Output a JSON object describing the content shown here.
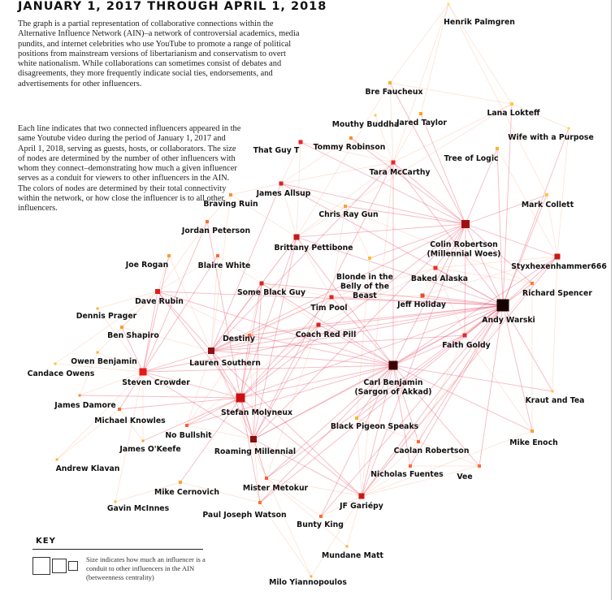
{
  "title": "JANUARY 1, 2017 THROUGH APRIL 1, 2018",
  "description": "The graph is a partial representation of collaborative connections within the Alternative Influence Network (AIN)–a network of controversial academics, media pundits, and internet celebrities who use YouTube to promote a range of political positions from mainstream versions of libertarianism and conservatism to overt white nationalism. While collaborations can sometimes consist of debates and disagreements, they more frequently indicate social ties, endorsements, and advertisements for other influencers.",
  "method": "Each line indicates that two connected influencers appeared in the same Youtube video during the period of January 1, 2017 and April 1, 2018, serving as guests, hosts, or collaborators. The size of nodes are determined by the number of other influencers with whom they connect–demonstrating how much a given influencer serves as a conduit for viewers to other influencers in the AIN. The colors of nodes are determined by their total connectivity within the network, or how close the influencer is to all other influencers.",
  "key": {
    "title": "KEY",
    "text": "Size indicates how much an influencer is a conduit to other influencers in the AIN (betweenness centrality)"
  },
  "colors": {
    "edge": "#e7586f",
    "text": "#111111"
  },
  "nodes": [
    {
      "id": "henrik",
      "label": "Henrik Palmgren",
      "size": 3,
      "color": "#ffe14a"
    },
    {
      "id": "bre",
      "label": "Bre Faucheux",
      "size": 4,
      "color": "#ffb21a"
    },
    {
      "id": "lana",
      "label": "Lana Lokteff",
      "size": 4,
      "color": "#ffc93a"
    },
    {
      "id": "mouthy",
      "label": "Mouthy Buddha",
      "size": 3,
      "color": "#ffcc44"
    },
    {
      "id": "jared",
      "label": "Jared Taylor",
      "size": 4,
      "color": "#ffa020"
    },
    {
      "id": "wife",
      "label": "Wife with a Purpose",
      "size": 3,
      "color": "#ffd83a"
    },
    {
      "id": "thatguy",
      "label": "That Guy T",
      "size": 5,
      "color": "#e8222a"
    },
    {
      "id": "tommy",
      "label": "Tommy Robinson",
      "size": 4,
      "color": "#ff8a2a"
    },
    {
      "id": "treelogic",
      "label": "Tree of Logic",
      "size": 4,
      "color": "#ffb230"
    },
    {
      "id": "tara",
      "label": "Tara McCarthy",
      "size": 5,
      "color": "#e52a2a"
    },
    {
      "id": "allsup",
      "label": "James Allsup",
      "size": 5,
      "color": "#d8202a"
    },
    {
      "id": "braving",
      "label": "Braving Ruin",
      "size": 4,
      "color": "#ff9030"
    },
    {
      "id": "markc",
      "label": "Mark Collett",
      "size": 4,
      "color": "#ffc840"
    },
    {
      "id": "chrisray",
      "label": "Chris Ray Gun",
      "size": 4,
      "color": "#ffa02a"
    },
    {
      "id": "colin",
      "label": "Colin Robertson\n(Millennial Woes)",
      "size": 10,
      "color": "#a01010"
    },
    {
      "id": "peterson",
      "label": "Jordan Peterson",
      "size": 4,
      "color": "#ff7030"
    },
    {
      "id": "pettibone",
      "label": "Brittany Pettibone",
      "size": 7,
      "color": "#c81818"
    },
    {
      "id": "styx",
      "label": "Styxhexenhammer666",
      "size": 7,
      "color": "#c81818"
    },
    {
      "id": "rogan",
      "label": "Joe Rogan",
      "size": 4,
      "color": "#ff9a30"
    },
    {
      "id": "blaire",
      "label": "Blaire White",
      "size": 4,
      "color": "#ff6a30"
    },
    {
      "id": "blonde",
      "label": "Blonde in the\nBelly of the\nBeast",
      "size": 4,
      "color": "#ffc030"
    },
    {
      "id": "baked",
      "label": "Baked Alaska",
      "size": 5,
      "color": "#e8302a"
    },
    {
      "id": "blackguy",
      "label": "Some Black Guy",
      "size": 5,
      "color": "#e02020"
    },
    {
      "id": "spencer",
      "label": "Richard Spencer",
      "size": 4,
      "color": "#ff7a30"
    },
    {
      "id": "rubin",
      "label": "Dave Rubin",
      "size": 6,
      "color": "#e01c1c"
    },
    {
      "id": "timpool",
      "label": "Tim Pool",
      "size": 5,
      "color": "#e82020"
    },
    {
      "id": "holiday",
      "label": "Jeff Holiday",
      "size": 5,
      "color": "#e84a2a"
    },
    {
      "id": "warski",
      "label": "Andy Warski",
      "size": 15,
      "color": "#180000"
    },
    {
      "id": "prager",
      "label": "Dennis Prager",
      "size": 3,
      "color": "#ffb030"
    },
    {
      "id": "shapiro",
      "label": "Ben Shapiro",
      "size": 4,
      "color": "#ff9a30"
    },
    {
      "id": "redpill",
      "label": "Coach Red Pill",
      "size": 5,
      "color": "#e01c1c"
    },
    {
      "id": "destiny",
      "label": "Destiny",
      "size": 4,
      "color": "#ff6a30"
    },
    {
      "id": "goldy",
      "label": "Faith Goldy",
      "size": 5,
      "color": "#e02a2a"
    },
    {
      "id": "owen",
      "label": "Owen Benjamin",
      "size": 3,
      "color": "#ffb030"
    },
    {
      "id": "southern",
      "label": "Lauren Southern",
      "size": 8,
      "color": "#901010"
    },
    {
      "id": "candace",
      "label": "Candace Owens",
      "size": 3,
      "color": "#ffc040"
    },
    {
      "id": "crowder",
      "label": "Steven Crowder",
      "size": 9,
      "color": "#e41a1a"
    },
    {
      "id": "benjamin",
      "label": "Carl Benjamin\n(Sargon of Akkad)",
      "size": 11,
      "color": "#400000"
    },
    {
      "id": "kraut",
      "label": "Kraut and Tea",
      "size": 3,
      "color": "#ffc040"
    },
    {
      "id": "damore",
      "label": "James Damore",
      "size": 3,
      "color": "#ff8a30"
    },
    {
      "id": "molyneux",
      "label": "Stefan Molyneux",
      "size": 11,
      "color": "#cc1010"
    },
    {
      "id": "knowles",
      "label": "Michael Knowles",
      "size": 4,
      "color": "#ff6a30"
    },
    {
      "id": "bullshit",
      "label": "No Bullshit",
      "size": 4,
      "color": "#ff5a30"
    },
    {
      "id": "blackpigeon",
      "label": "Black Pigeon Speaks",
      "size": 4,
      "color": "#ffb030"
    },
    {
      "id": "okeefe",
      "label": "James O'Keefe",
      "size": 3,
      "color": "#ffa030"
    },
    {
      "id": "roaming",
      "label": "Roaming Millennial",
      "size": 8,
      "color": "#8a1010"
    },
    {
      "id": "enoch",
      "label": "Mike Enoch",
      "size": 4,
      "color": "#ffa030"
    },
    {
      "id": "caolan",
      "label": "Caolan Robertson",
      "size": 4,
      "color": "#ff6a30"
    },
    {
      "id": "klavan",
      "label": "Andrew Klavan",
      "size": 3,
      "color": "#ffb030"
    },
    {
      "id": "fuentes",
      "label": "Nicholas Fuentes",
      "size": 4,
      "color": "#ff6a30"
    },
    {
      "id": "vee",
      "label": "Vee",
      "size": 4,
      "color": "#ff6a30"
    },
    {
      "id": "cernovich",
      "label": "Mike Cernovich",
      "size": 4,
      "color": "#ffa030"
    },
    {
      "id": "metokur",
      "label": "Mister Metokur",
      "size": 4,
      "color": "#ff5a30"
    },
    {
      "id": "mcinnes",
      "label": "Gavin McInnes",
      "size": 3,
      "color": "#ffc040"
    },
    {
      "id": "watson",
      "label": "Paul Joseph Watson",
      "size": 4,
      "color": "#ff7030"
    },
    {
      "id": "gariepy",
      "label": "JF Gariépy",
      "size": 7,
      "color": "#c81818"
    },
    {
      "id": "buntyking",
      "label": "Bunty King",
      "size": 4,
      "color": "#ff6a30"
    },
    {
      "id": "mundane",
      "label": "Mundane Matt",
      "size": 3,
      "color": "#ffb030"
    },
    {
      "id": "milo",
      "label": "Milo Yiannopoulos",
      "size": 3,
      "color": "#ffb030"
    }
  ],
  "edges": [
    [
      "warski",
      "colin"
    ],
    [
      "warski",
      "styx"
    ],
    [
      "warski",
      "spencer"
    ],
    [
      "warski",
      "benjamin"
    ],
    [
      "warski",
      "goldy"
    ],
    [
      "warski",
      "baked"
    ],
    [
      "warski",
      "holiday"
    ],
    [
      "warski",
      "timpool"
    ],
    [
      "warski",
      "molyneux"
    ],
    [
      "warski",
      "roaming"
    ],
    [
      "warski",
      "southern"
    ],
    [
      "warski",
      "gariepy"
    ],
    [
      "warski",
      "fuentes"
    ],
    [
      "warski",
      "vee"
    ],
    [
      "warski",
      "enoch"
    ],
    [
      "warski",
      "caolan"
    ],
    [
      "warski",
      "metokur"
    ],
    [
      "warski",
      "crowder"
    ],
    [
      "warski",
      "redpill"
    ],
    [
      "warski",
      "tara"
    ],
    [
      "warski",
      "markc"
    ],
    [
      "warski",
      "kraut"
    ],
    [
      "warski",
      "blackguy"
    ],
    [
      "warski",
      "rubin"
    ],
    [
      "warski",
      "destiny"
    ],
    [
      "warski",
      "pettibone"
    ],
    [
      "warski",
      "treelogic"
    ],
    [
      "warski",
      "wife"
    ],
    [
      "warski",
      "lana"
    ],
    [
      "warski",
      "buntyking"
    ],
    [
      "warski",
      "watson"
    ],
    [
      "warski",
      "blackpigeon"
    ],
    [
      "warski",
      "allsup"
    ],
    [
      "benjamin",
      "molyneux"
    ],
    [
      "benjamin",
      "southern"
    ],
    [
      "benjamin",
      "crowder"
    ],
    [
      "benjamin",
      "roaming"
    ],
    [
      "benjamin",
      "gariepy"
    ],
    [
      "benjamin",
      "colin"
    ],
    [
      "benjamin",
      "styx"
    ],
    [
      "benjamin",
      "goldy"
    ],
    [
      "benjamin",
      "timpool"
    ],
    [
      "benjamin",
      "redpill"
    ],
    [
      "benjamin",
      "pettibone"
    ],
    [
      "benjamin",
      "destiny"
    ],
    [
      "benjamin",
      "rubin"
    ],
    [
      "benjamin",
      "blackguy"
    ],
    [
      "benjamin",
      "caolan"
    ],
    [
      "benjamin",
      "vee"
    ],
    [
      "benjamin",
      "metokur"
    ],
    [
      "benjamin",
      "fuentes"
    ],
    [
      "benjamin",
      "blackpigeon"
    ],
    [
      "benjamin",
      "enoch"
    ],
    [
      "benjamin",
      "tara"
    ],
    [
      "benjamin",
      "bullshit"
    ],
    [
      "benjamin",
      "watson"
    ],
    [
      "benjamin",
      "buntyking"
    ],
    [
      "benjamin",
      "kraut"
    ],
    [
      "molyneux",
      "southern"
    ],
    [
      "molyneux",
      "crowder"
    ],
    [
      "molyneux",
      "roaming"
    ],
    [
      "molyneux",
      "rubin"
    ],
    [
      "molyneux",
      "pettibone"
    ],
    [
      "molyneux",
      "blackguy"
    ],
    [
      "molyneux",
      "destiny"
    ],
    [
      "molyneux",
      "knowles"
    ],
    [
      "molyneux",
      "bullshit"
    ],
    [
      "molyneux",
      "metokur"
    ],
    [
      "molyneux",
      "watson"
    ],
    [
      "molyneux",
      "gariepy"
    ],
    [
      "molyneux",
      "colin"
    ],
    [
      "molyneux",
      "peterson"
    ],
    [
      "molyneux",
      "timpool"
    ],
    [
      "molyneux",
      "damore"
    ],
    [
      "molyneux",
      "okeefe"
    ],
    [
      "molyneux",
      "cernovich"
    ],
    [
      "molyneux",
      "redpill"
    ],
    [
      "southern",
      "crowder"
    ],
    [
      "southern",
      "roaming"
    ],
    [
      "southern",
      "rubin"
    ],
    [
      "southern",
      "pettibone"
    ],
    [
      "southern",
      "destiny"
    ],
    [
      "southern",
      "blackguy"
    ],
    [
      "southern",
      "timpool"
    ],
    [
      "southern",
      "redpill"
    ],
    [
      "southern",
      "allsup"
    ],
    [
      "southern",
      "tara"
    ],
    [
      "southern",
      "blaire"
    ],
    [
      "southern",
      "braving"
    ],
    [
      "southern",
      "gariepy"
    ],
    [
      "southern",
      "metokur"
    ],
    [
      "southern",
      "goldy"
    ],
    [
      "southern",
      "colin"
    ],
    [
      "southern",
      "shapiro"
    ],
    [
      "southern",
      "rogan"
    ],
    [
      "southern",
      "bullshit"
    ],
    [
      "crowder",
      "rubin"
    ],
    [
      "crowder",
      "shapiro"
    ],
    [
      "crowder",
      "owen"
    ],
    [
      "crowder",
      "candace"
    ],
    [
      "crowder",
      "prager"
    ],
    [
      "crowder",
      "knowles"
    ],
    [
      "crowder",
      "damore"
    ],
    [
      "crowder",
      "roaming"
    ],
    [
      "crowder",
      "okeefe"
    ],
    [
      "crowder",
      "klavan"
    ],
    [
      "crowder",
      "rogan"
    ],
    [
      "crowder",
      "peterson"
    ],
    [
      "crowder",
      "blaire"
    ],
    [
      "crowder",
      "mcinnes"
    ],
    [
      "roaming",
      "gariepy"
    ],
    [
      "roaming",
      "metokur"
    ],
    [
      "roaming",
      "pettibone"
    ],
    [
      "roaming",
      "redpill"
    ],
    [
      "roaming",
      "blackguy"
    ],
    [
      "roaming",
      "destiny"
    ],
    [
      "roaming",
      "bullshit"
    ],
    [
      "roaming",
      "watson"
    ],
    [
      "roaming",
      "tara"
    ],
    [
      "roaming",
      "colin"
    ],
    [
      "gariepy",
      "fuentes"
    ],
    [
      "gariepy",
      "vee"
    ],
    [
      "gariepy",
      "caolan"
    ],
    [
      "gariepy",
      "enoch"
    ],
    [
      "gariepy",
      "metokur"
    ],
    [
      "gariepy",
      "buntyking"
    ],
    [
      "gariepy",
      "styx"
    ],
    [
      "gariepy",
      "spencer"
    ],
    [
      "gariepy",
      "colin"
    ],
    [
      "gariepy",
      "tara"
    ],
    [
      "gariepy",
      "blackpigeon"
    ],
    [
      "colin",
      "styx"
    ],
    [
      "colin",
      "tara"
    ],
    [
      "colin",
      "pettibone"
    ],
    [
      "colin",
      "thatguy"
    ],
    [
      "colin",
      "allsup"
    ],
    [
      "colin",
      "markc"
    ],
    [
      "colin",
      "treelogic"
    ],
    [
      "colin",
      "bre"
    ],
    [
      "colin",
      "jared"
    ],
    [
      "colin",
      "baked"
    ],
    [
      "colin",
      "spencer"
    ],
    [
      "colin",
      "goldy"
    ],
    [
      "colin",
      "blonde"
    ],
    [
      "colin",
      "chrisray"
    ],
    [
      "colin",
      "tommy"
    ],
    [
      "pettibone",
      "tara"
    ],
    [
      "pettibone",
      "allsup"
    ],
    [
      "pettibone",
      "thatguy"
    ],
    [
      "pettibone",
      "bre"
    ],
    [
      "pettibone",
      "blackguy"
    ],
    [
      "pettibone",
      "timpool"
    ],
    [
      "pettibone",
      "braving"
    ],
    [
      "pettibone",
      "lana"
    ],
    [
      "styx",
      "spencer"
    ],
    [
      "styx",
      "markc"
    ],
    [
      "styx",
      "wife"
    ],
    [
      "styx",
      "treelogic"
    ],
    [
      "styx",
      "baked"
    ],
    [
      "styx",
      "holiday"
    ],
    [
      "styx",
      "kraut"
    ],
    [
      "tara",
      "allsup"
    ],
    [
      "tara",
      "thatguy"
    ],
    [
      "tara",
      "bre"
    ],
    [
      "tara",
      "jared"
    ],
    [
      "tara",
      "mouthy"
    ],
    [
      "tara",
      "tommy"
    ],
    [
      "tara",
      "lana"
    ],
    [
      "tara",
      "henrik"
    ],
    [
      "rubin",
      "peterson"
    ],
    [
      "rubin",
      "blaire"
    ],
    [
      "rubin",
      "shapiro"
    ],
    [
      "rubin",
      "prager"
    ],
    [
      "rubin",
      "rogan"
    ],
    [
      "rubin",
      "owen"
    ],
    [
      "rubin",
      "candace"
    ],
    [
      "rubin",
      "destiny"
    ],
    [
      "timpool",
      "redpill"
    ],
    [
      "timpool",
      "blackguy"
    ],
    [
      "timpool",
      "baked"
    ],
    [
      "timpool",
      "holiday"
    ],
    [
      "timpool",
      "destiny"
    ],
    [
      "timpool",
      "chrisray"
    ],
    [
      "redpill",
      "destiny"
    ],
    [
      "redpill",
      "blackguy"
    ],
    [
      "redpill",
      "baked"
    ],
    [
      "redpill",
      "bullshit"
    ],
    [
      "redpill",
      "metokur"
    ],
    [
      "allsup",
      "thatguy"
    ],
    [
      "allsup",
      "braving"
    ],
    [
      "allsup",
      "spencer"
    ],
    [
      "allsup",
      "tommy"
    ],
    [
      "baked",
      "holiday"
    ],
    [
      "baked",
      "goldy"
    ],
    [
      "baked",
      "spencer"
    ],
    [
      "goldy",
      "spencer"
    ],
    [
      "goldy",
      "enoch"
    ],
    [
      "goldy",
      "caolan"
    ],
    [
      "bre",
      "henrik"
    ],
    [
      "bre",
      "lana"
    ],
    [
      "lana",
      "henrik"
    ],
    [
      "lana",
      "wife"
    ],
    [
      "jared",
      "henrik"
    ],
    [
      "markc",
      "henrik"
    ],
    [
      "metokur",
      "watson"
    ],
    [
      "metokur",
      "buntyking"
    ],
    [
      "metokur",
      "milo"
    ],
    [
      "watson",
      "milo"
    ],
    [
      "watson",
      "cernovich"
    ],
    [
      "mundane",
      "metokur"
    ],
    [
      "mundane",
      "gariepy"
    ],
    [
      "milo",
      "gariepy"
    ],
    [
      "bullshit",
      "destiny"
    ],
    [
      "knowles",
      "okeefe"
    ],
    [
      "knowles",
      "klavan"
    ],
    [
      "damore",
      "owen"
    ],
    [
      "cernovich",
      "mcinnes"
    ],
    [
      "fuentes",
      "vee"
    ],
    [
      "fuentes",
      "caolan"
    ],
    [
      "caolan",
      "vee"
    ],
    [
      "enoch",
      "spencer"
    ],
    [
      "blackpigeon",
      "caolan"
    ],
    [
      "blackpigeon",
      "blonde"
    ],
    [
      "braving",
      "peterson"
    ],
    [
      "blaire",
      "blackguy"
    ],
    [
      "destiny",
      "blackguy"
    ],
    [
      "chrisray",
      "blonde"
    ]
  ]
}
